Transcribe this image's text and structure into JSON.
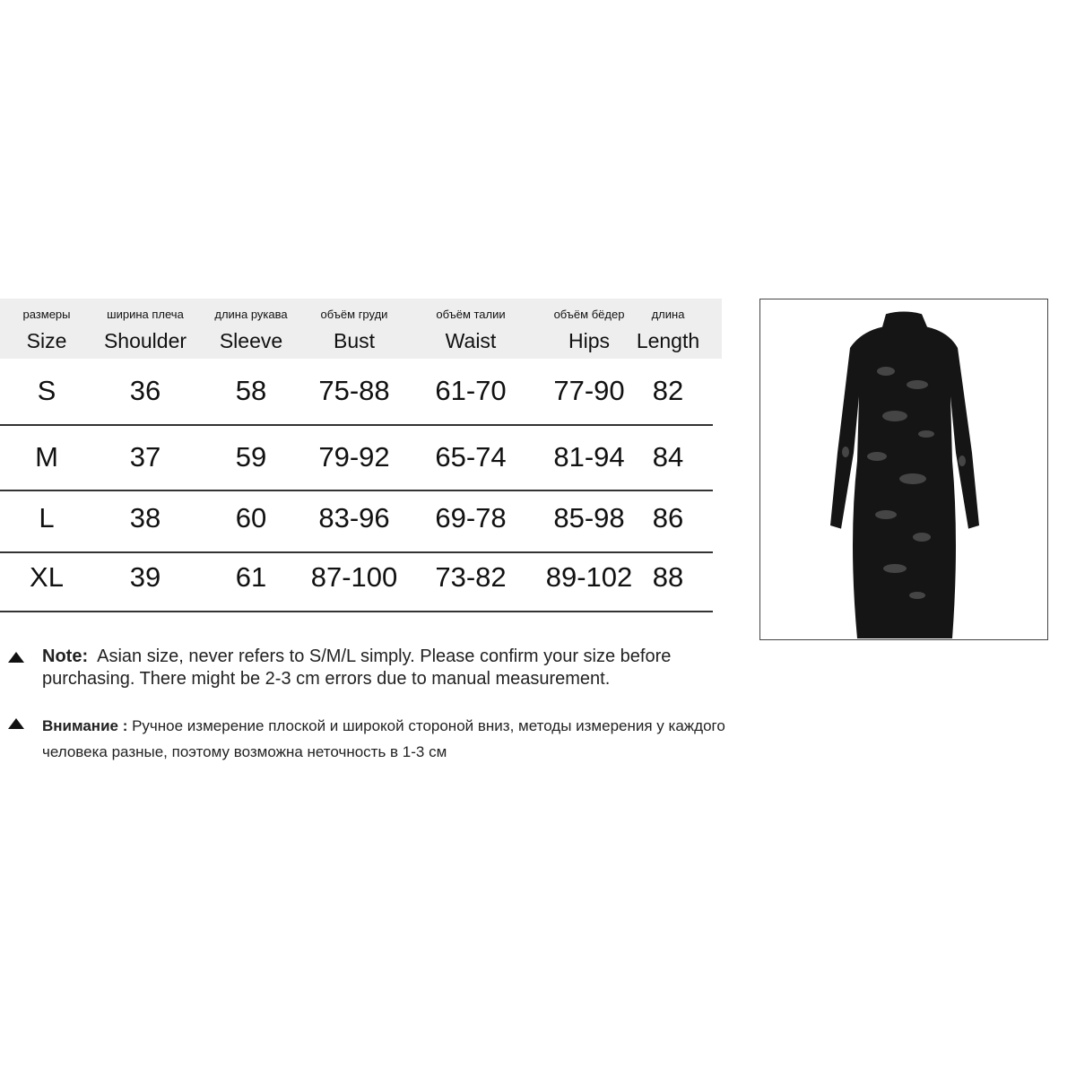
{
  "table": {
    "headers": [
      {
        "ru": "размеры",
        "en": "Size"
      },
      {
        "ru": "ширина плеча",
        "en": "Shoulder"
      },
      {
        "ru": "длина рукава",
        "en": "Sleeve"
      },
      {
        "ru": "объём груди",
        "en": "Bust"
      },
      {
        "ru": "объём талии",
        "en": "Waist"
      },
      {
        "ru": "объём бёдер",
        "en": "Hips"
      },
      {
        "ru": "длина",
        "en": "Length"
      }
    ],
    "rows": [
      [
        "S",
        "36",
        "58",
        "75-88",
        "61-70",
        "77-90",
        "82"
      ],
      [
        "M",
        "37",
        "59",
        "79-92",
        "65-74",
        "81-94",
        "84"
      ],
      [
        "L",
        "38",
        "60",
        "83-96",
        "69-78",
        "85-98",
        "86"
      ],
      [
        "XL",
        "39",
        "61",
        "87-100",
        "73-82",
        "89-102",
        "88"
      ]
    ]
  },
  "notes": {
    "en_label": "Note:",
    "en_text": "Asian size, never refers to S/M/L simply. Please confirm your size before purchasing. There might be 2-3 cm errors due to manual measurement.",
    "ru_label": "Внимание :",
    "ru_text": "Ручное измерение плоской и широкой стороной вниз, методы измерения у каждого человека разные, поэтому возможна неточность в 1-3 см",
    "icon": "triangle-up-icon"
  },
  "product_image": {
    "alt": "black distressed long-sleeve bodycon dress"
  }
}
